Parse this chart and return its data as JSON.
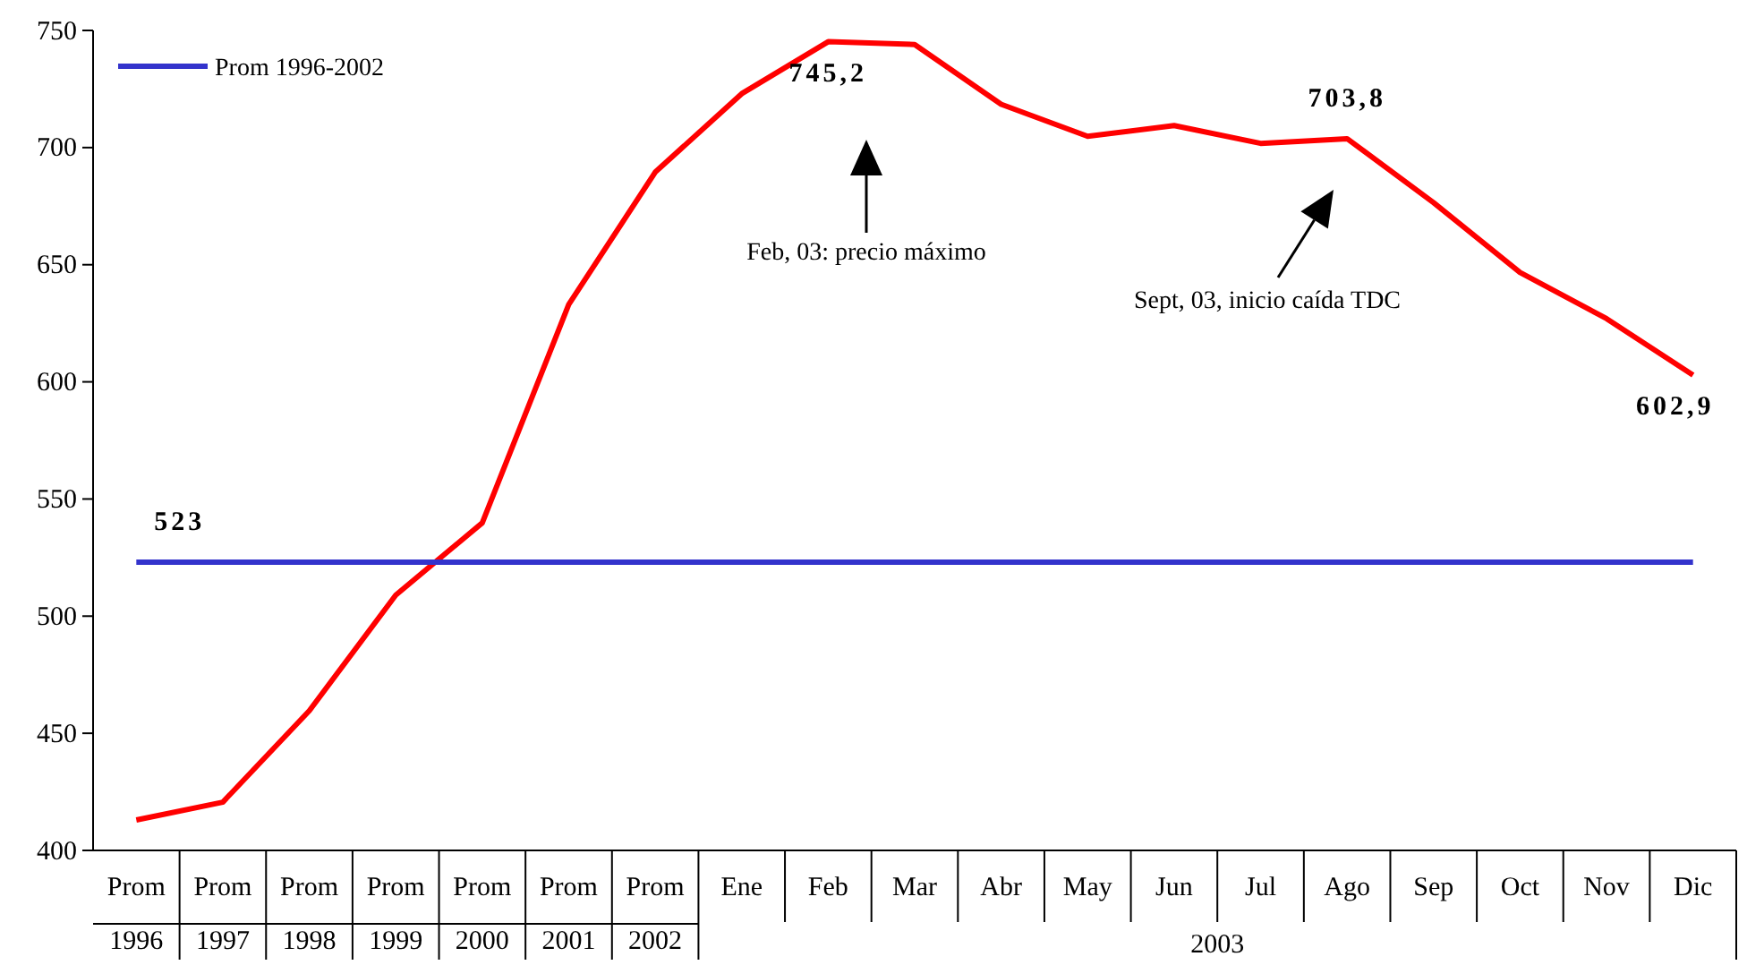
{
  "chart_data": {
    "type": "line",
    "categories": [
      "Prom 1996",
      "Prom 1997",
      "Prom 1998",
      "Prom 1999",
      "Prom 2000",
      "Prom 2001",
      "Prom 2002",
      "Ene",
      "Feb",
      "Mar",
      "Abr",
      "May",
      "Jun",
      "Jul",
      "Ago",
      "Sep",
      "Oct",
      "Nov",
      "Dic"
    ],
    "series": [
      {
        "color": "#ff0000",
        "values": [
          413,
          420.6,
          459.6,
          509,
          539.8,
          633,
          689.5,
          723,
          745.2,
          744,
          718.5,
          704.8,
          709.4,
          701.8,
          703.8,
          676.5,
          646.7,
          627,
          602.9
        ],
        "value_labels": [
          null,
          null,
          null,
          null,
          null,
          null,
          null,
          null,
          "745,2",
          null,
          null,
          null,
          null,
          null,
          "703,8",
          null,
          null,
          null,
          "602,9"
        ]
      },
      {
        "name": "Prom 1996-2002",
        "color": "#3333cc",
        "values": [
          523,
          523,
          523,
          523,
          523,
          523,
          523,
          523,
          523,
          523,
          523,
          523,
          523,
          523,
          523,
          523,
          523,
          523,
          523
        ],
        "value_labels": [
          "523",
          null,
          null,
          null,
          null,
          null,
          null,
          null,
          null,
          null,
          null,
          null,
          null,
          null,
          null,
          null,
          null,
          null,
          null
        ]
      }
    ],
    "ylim": [
      400,
      750
    ],
    "yticks": [
      400,
      450,
      500,
      550,
      600,
      650,
      700,
      750
    ],
    "grid": false,
    "legend": "top left",
    "marker": "none",
    "line_style": "solid",
    "annotations": [
      "Feb, 03: precio máximo",
      "Sept, 03, inicio caída TDC",
      "2003"
    ]
  }
}
